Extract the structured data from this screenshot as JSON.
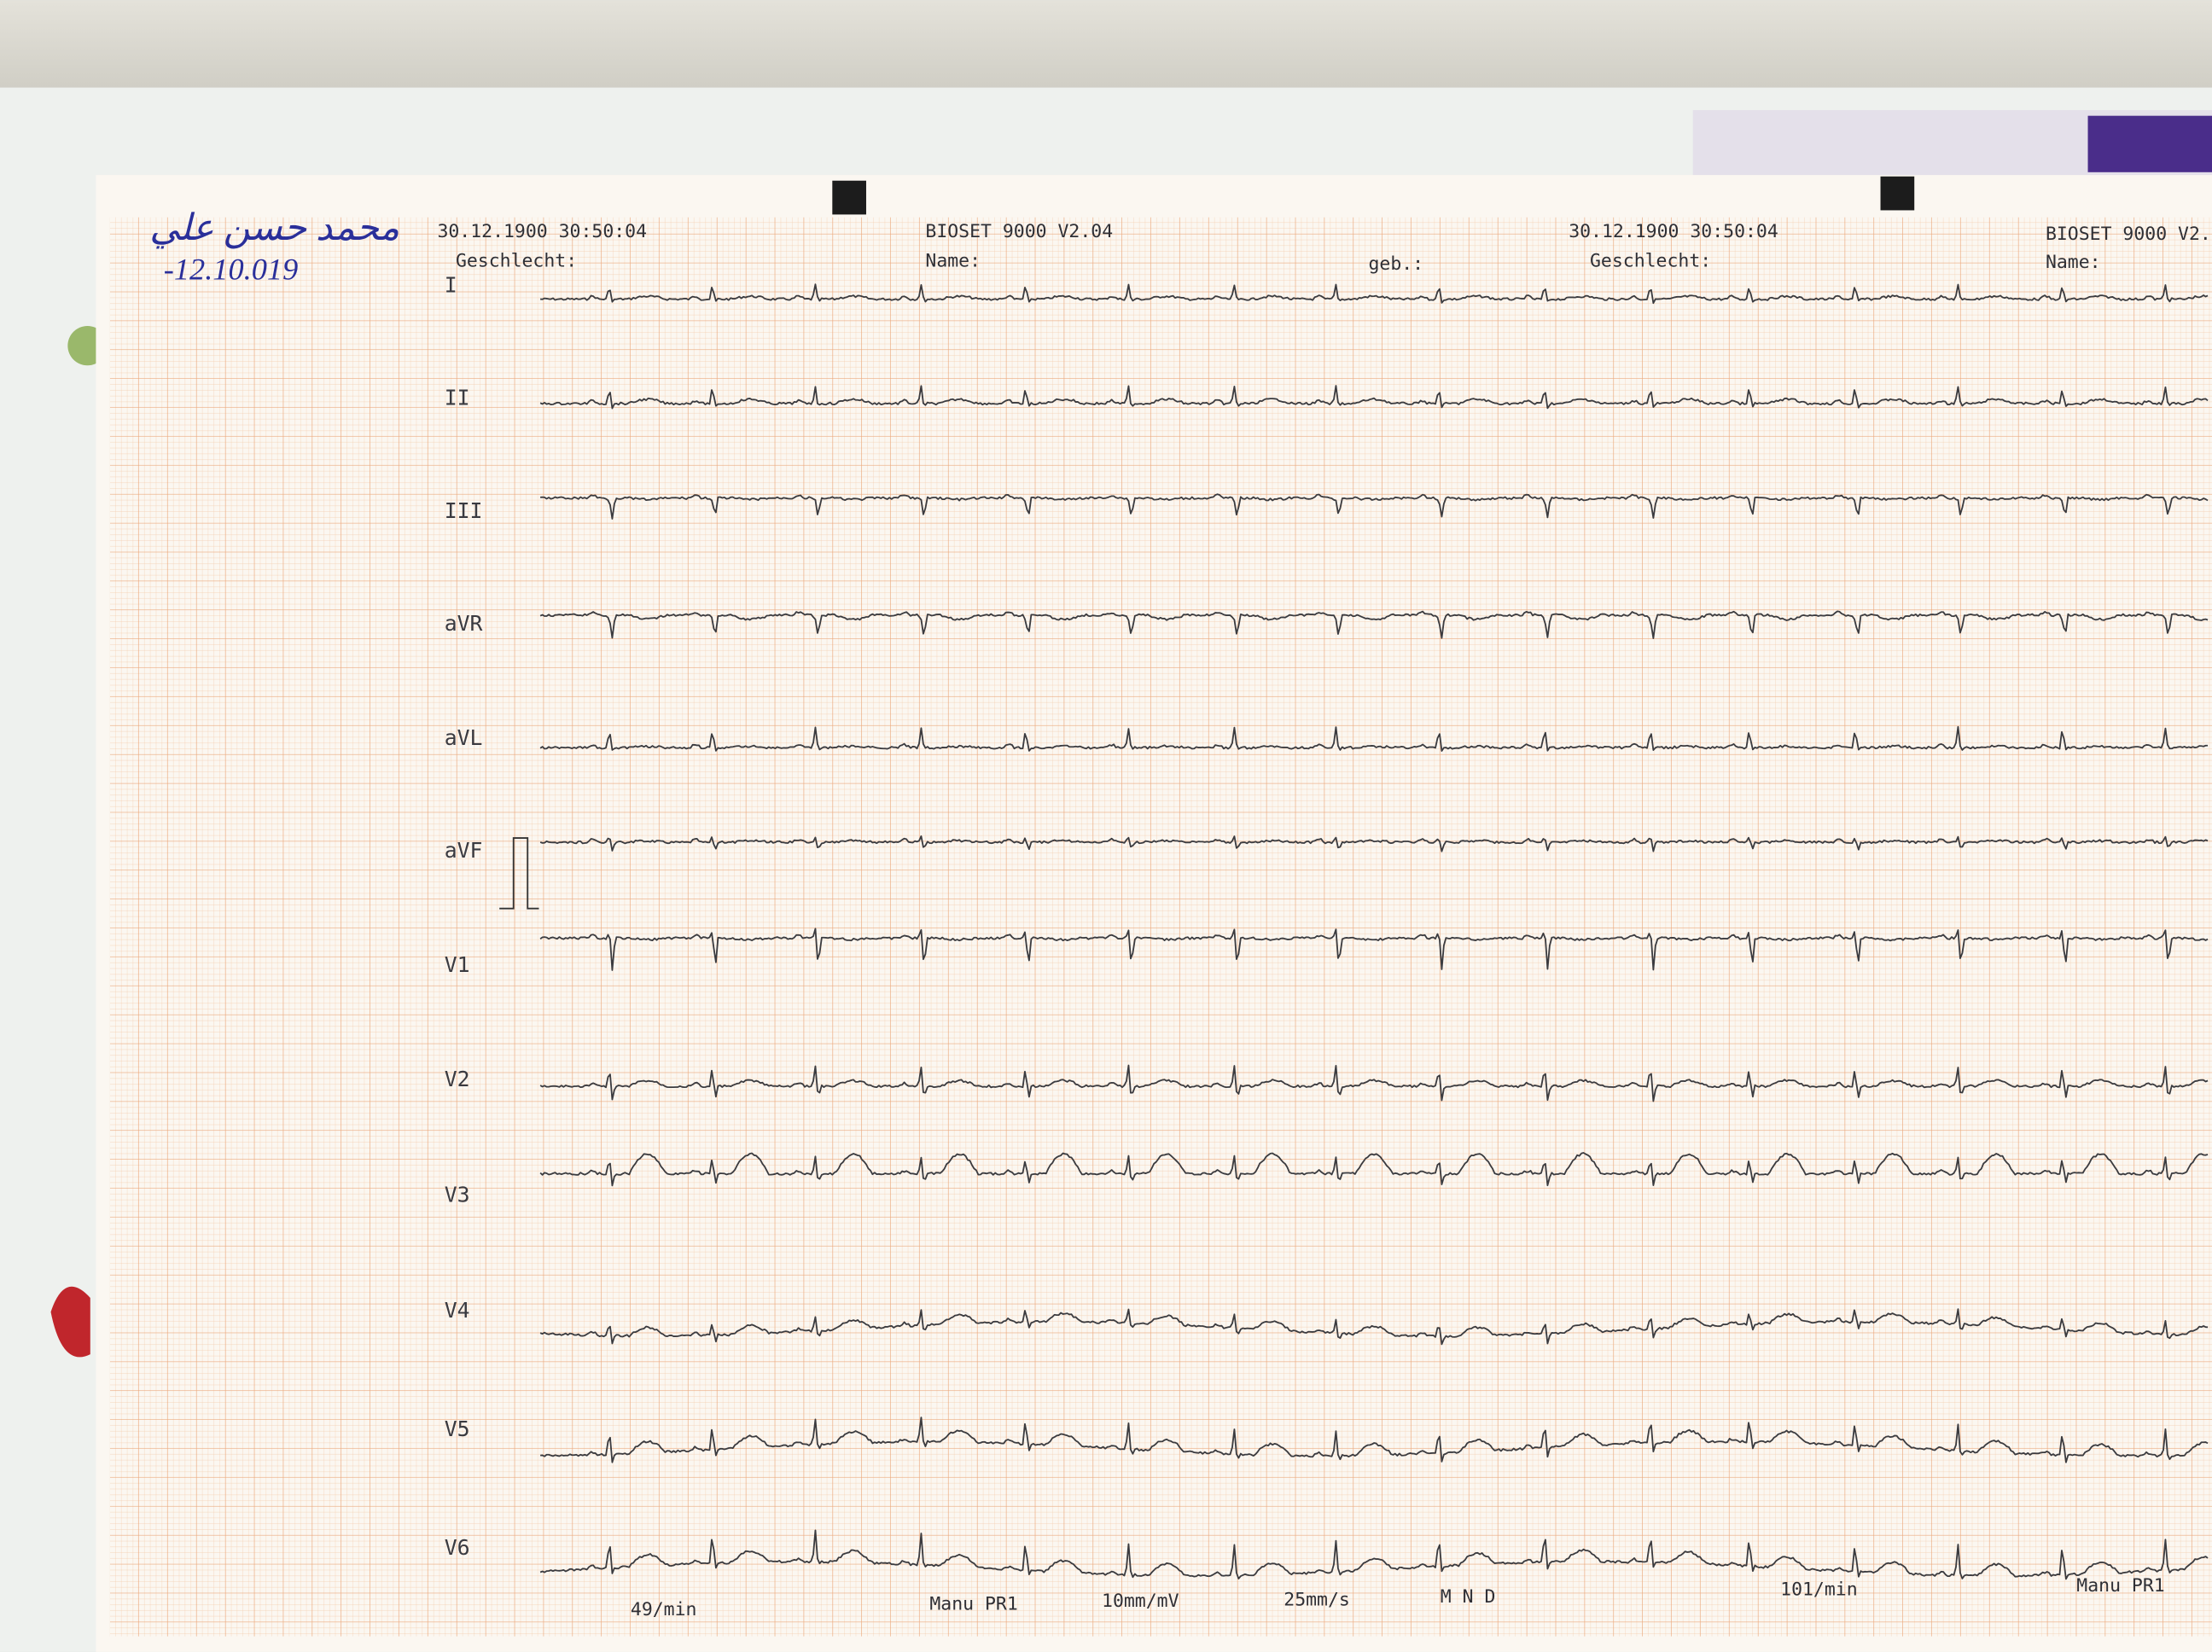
{
  "handwriting": {
    "name": "محمد حسن علي",
    "date": "-12.10.019"
  },
  "header": {
    "left": {
      "timestamp": "30.12.1900 30:50:04",
      "device": "BIOSET 9000 V2.04",
      "sex_label": "Geschlecht:",
      "name_label": "Name:"
    },
    "right": {
      "birth_label": "geb.:",
      "timestamp": "30.12.1900 30:50:04",
      "sex_label": "Geschlecht:",
      "device": "BIOSET 9000 V2.",
      "name_label": "Name:"
    }
  },
  "leads": [
    "I",
    "II",
    "III",
    "aVR",
    "aVL",
    "aVF",
    "V1",
    "V2",
    "V3",
    "V4",
    "V5",
    "V6"
  ],
  "footer": {
    "left_rate": "49/min",
    "left_mode": "Manu PR1",
    "gain": "10mm/mV",
    "speed": "25mm/s",
    "filters": "M N D",
    "right_rate": "101/min",
    "right_mode": "Manu PR1"
  }
}
